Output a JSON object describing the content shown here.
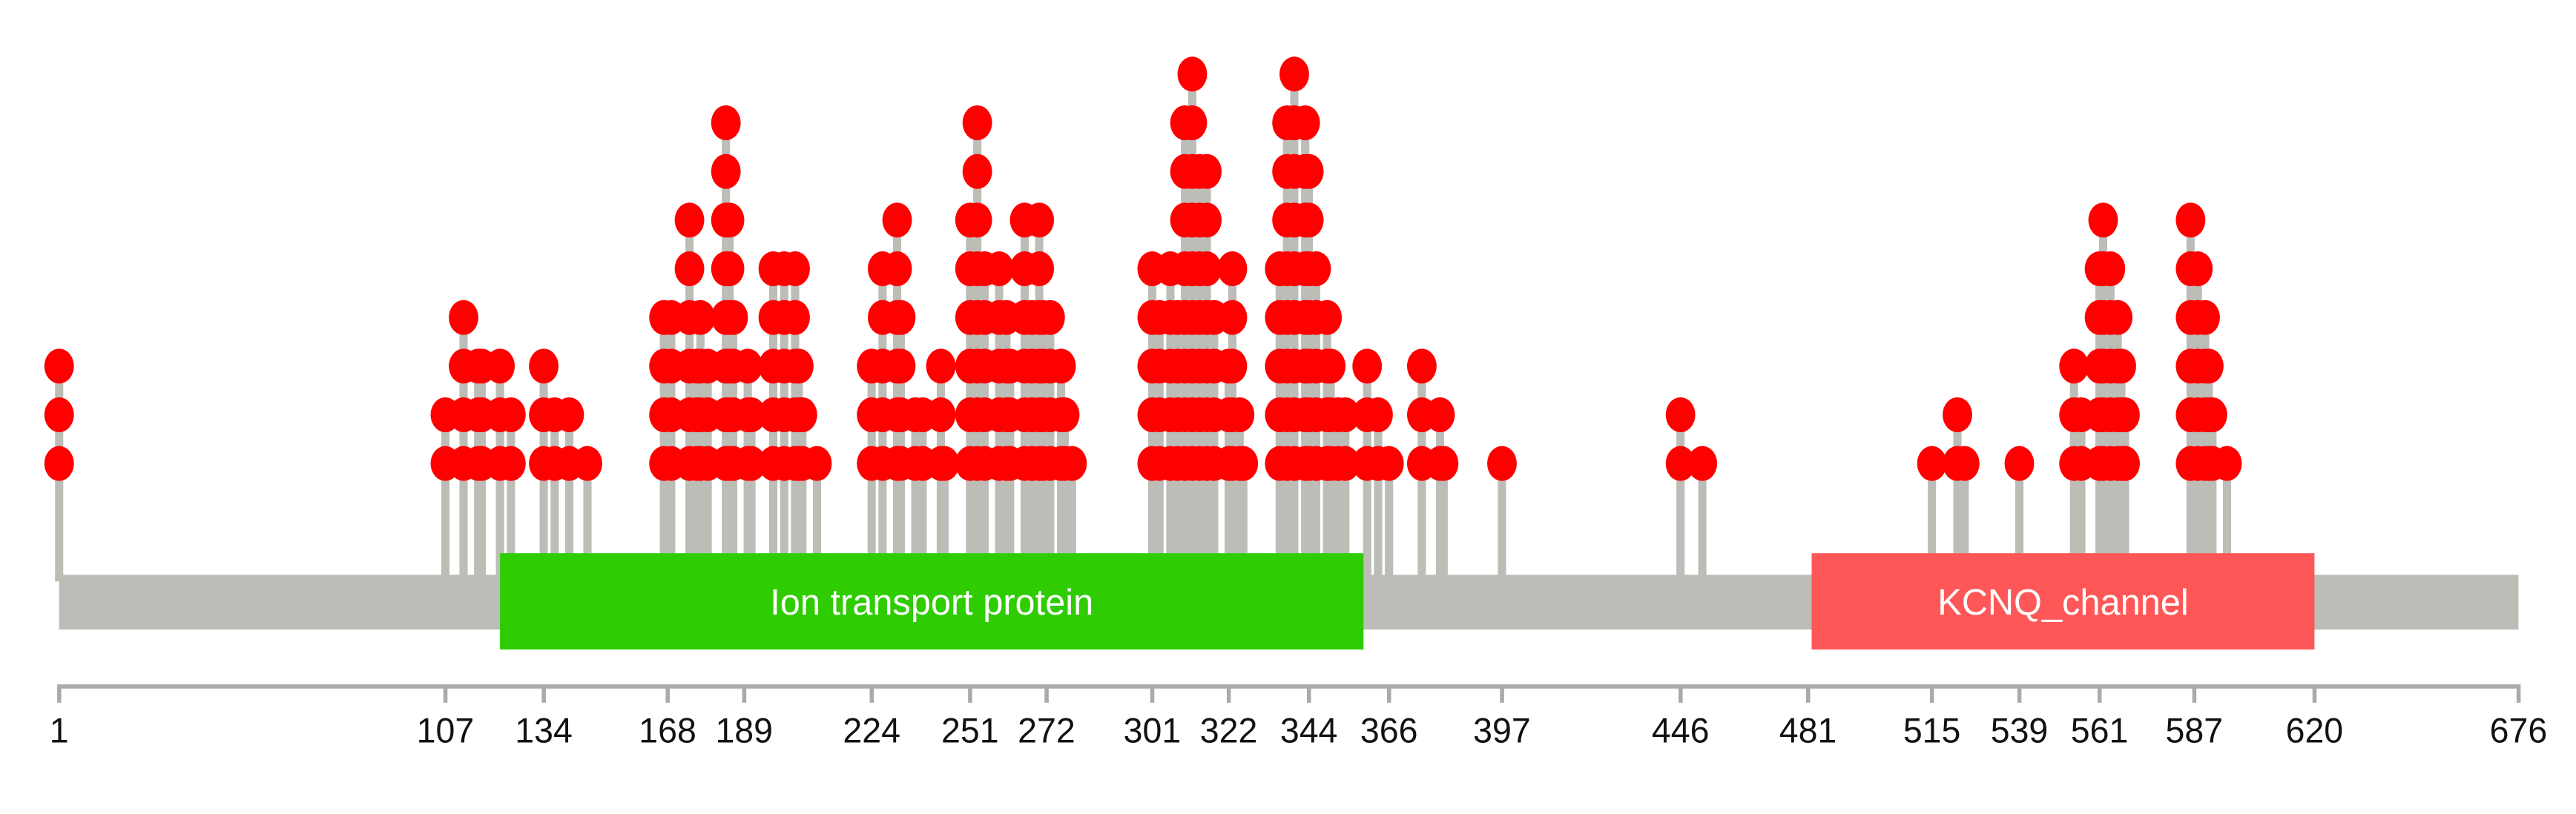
{
  "chart_data": {
    "type": "lollipop",
    "protein_length": 676,
    "xlim": [
      1,
      676
    ],
    "x_ticks": [
      1,
      107,
      134,
      168,
      189,
      224,
      251,
      272,
      301,
      322,
      344,
      366,
      397,
      446,
      481,
      515,
      539,
      561,
      587,
      620,
      676
    ],
    "domains": [
      {
        "name": "Ion transport protein",
        "start": 122,
        "end": 359,
        "color": "#2ecc00"
      },
      {
        "name": "KCNQ_channel",
        "start": 482,
        "end": 620,
        "color": "#ff5757"
      }
    ],
    "mutations": [
      [
        1,
        3
      ],
      [
        107,
        2
      ],
      [
        112,
        4
      ],
      [
        116,
        3
      ],
      [
        117,
        3
      ],
      [
        122,
        3
      ],
      [
        125,
        2
      ],
      [
        134,
        3
      ],
      [
        137,
        2
      ],
      [
        141,
        2
      ],
      [
        146,
        1
      ],
      [
        167,
        4
      ],
      [
        169,
        4
      ],
      [
        174,
        6
      ],
      [
        176,
        3
      ],
      [
        177,
        4
      ],
      [
        179,
        3
      ],
      [
        184,
        8
      ],
      [
        185,
        6
      ],
      [
        186,
        4
      ],
      [
        190,
        3
      ],
      [
        191,
        2
      ],
      [
        197,
        5
      ],
      [
        200,
        5
      ],
      [
        203,
        5
      ],
      [
        204,
        3
      ],
      [
        205,
        2
      ],
      [
        209,
        1
      ],
      [
        224,
        3
      ],
      [
        227,
        5
      ],
      [
        231,
        6
      ],
      [
        232,
        4
      ],
      [
        236,
        2
      ],
      [
        238,
        2
      ],
      [
        243,
        3
      ],
      [
        244,
        1
      ],
      [
        251,
        6
      ],
      [
        253,
        8
      ],
      [
        255,
        5
      ],
      [
        259,
        5
      ],
      [
        261,
        4
      ],
      [
        262,
        3
      ],
      [
        266,
        6
      ],
      [
        268,
        4
      ],
      [
        270,
        6
      ],
      [
        271,
        4
      ],
      [
        273,
        4
      ],
      [
        276,
        3
      ],
      [
        277,
        2
      ],
      [
        279,
        1
      ],
      [
        301,
        5
      ],
      [
        303,
        4
      ],
      [
        306,
        5
      ],
      [
        308,
        4
      ],
      [
        310,
        8
      ],
      [
        312,
        9
      ],
      [
        314,
        7
      ],
      [
        316,
        7
      ],
      [
        318,
        4
      ],
      [
        322,
        3
      ],
      [
        323,
        5
      ],
      [
        325,
        2
      ],
      [
        326,
        1
      ],
      [
        336,
        5
      ],
      [
        338,
        8
      ],
      [
        340,
        9
      ],
      [
        343,
        8
      ],
      [
        344,
        7
      ],
      [
        346,
        5
      ],
      [
        349,
        4
      ],
      [
        350,
        3
      ],
      [
        352,
        2
      ],
      [
        354,
        2
      ],
      [
        360,
        3
      ],
      [
        363,
        2
      ],
      [
        366,
        1
      ],
      [
        375,
        3
      ],
      [
        380,
        2
      ],
      [
        381,
        1
      ],
      [
        397,
        1
      ],
      [
        446,
        2
      ],
      [
        452,
        1
      ],
      [
        515,
        1
      ],
      [
        522,
        2
      ],
      [
        524,
        1
      ],
      [
        539,
        1
      ],
      [
        554,
        3
      ],
      [
        556,
        2
      ],
      [
        561,
        5
      ],
      [
        562,
        6
      ],
      [
        564,
        5
      ],
      [
        566,
        4
      ],
      [
        567,
        3
      ],
      [
        568,
        2
      ],
      [
        568,
        1
      ],
      [
        586,
        6
      ],
      [
        588,
        5
      ],
      [
        590,
        4
      ],
      [
        591,
        3
      ],
      [
        592,
        2
      ],
      [
        596,
        1
      ]
    ],
    "colors": {
      "backbone": "#bbbdb6",
      "stem": "#bbbdb6",
      "marker": "#ff0000",
      "axis": "#aaaaaa",
      "domain_text": "#ffffff"
    }
  }
}
